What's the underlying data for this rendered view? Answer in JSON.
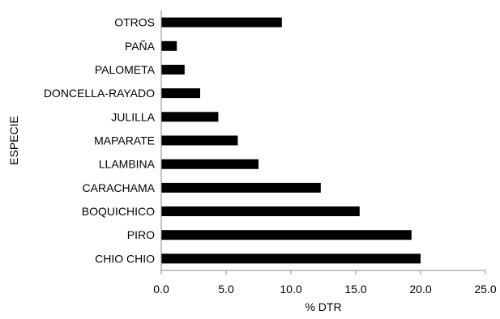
{
  "chart_data": {
    "type": "bar",
    "orientation": "horizontal",
    "title": "",
    "xlabel": "% DTR",
    "ylabel": "ESPECIE",
    "xlim": [
      0,
      25
    ],
    "xticks": [
      "0.0",
      "5.0",
      "10.0",
      "15.0",
      "20.0",
      "25.0"
    ],
    "xtick_values": [
      0,
      5,
      10,
      15,
      20,
      25
    ],
    "grid": false,
    "legend": "none",
    "bar_color": "#000000",
    "categories": [
      "CHIO CHIO",
      "PIRO",
      "BOQUICHICO",
      "CARACHAMA",
      "LLAMBINA",
      "MAPARATE",
      "JULILLA",
      "DONCELLA-RAYADO",
      "PALOMETA",
      "PAÑA",
      "OTROS"
    ],
    "values": [
      20.0,
      19.3,
      15.3,
      12.3,
      7.5,
      5.9,
      4.4,
      3.0,
      1.8,
      1.2,
      9.3
    ]
  }
}
